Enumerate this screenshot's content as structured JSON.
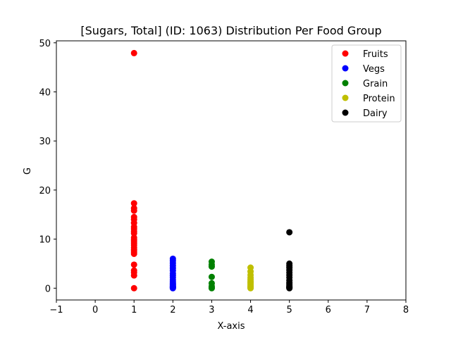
{
  "chart_data": {
    "type": "scatter",
    "title": "[Sugars, Total] (ID: 1063) Distribution Per Food Group",
    "xlabel": "X-axis",
    "ylabel": "G",
    "xlim": [
      -1,
      8
    ],
    "ylim": [
      -2.4,
      50.4
    ],
    "xticks": [
      -1,
      0,
      1,
      2,
      3,
      4,
      5,
      6,
      7,
      8
    ],
    "yticks": [
      0,
      10,
      20,
      30,
      40,
      50
    ],
    "grid": false,
    "legend_position": "top-right",
    "series": [
      {
        "name": "Fruits",
        "color": "#ff0000",
        "x": [
          1,
          1,
          1,
          1,
          1,
          1,
          1,
          1,
          1,
          1,
          1,
          1,
          1,
          1,
          1,
          1,
          1,
          1,
          1,
          1,
          1,
          1,
          1,
          1,
          1,
          1
        ],
        "y": [
          47.9,
          17.3,
          16.3,
          15.8,
          14.5,
          14.0,
          13.3,
          12.5,
          12.1,
          11.6,
          11.2,
          10.3,
          9.9,
          9.6,
          9.2,
          8.8,
          8.3,
          7.9,
          7.6,
          7.3,
          7.0,
          4.8,
          3.6,
          3.2,
          2.6,
          0.0
        ]
      },
      {
        "name": "Vegs",
        "color": "#0000ff",
        "x": [
          2,
          2,
          2,
          2,
          2,
          2,
          2,
          2,
          2,
          2,
          2,
          2,
          2,
          2,
          2,
          2,
          2,
          2,
          2
        ],
        "y": [
          6.0,
          5.6,
          5.1,
          4.6,
          4.1,
          3.6,
          3.0,
          2.6,
          2.2,
          1.7,
          1.3,
          1.0,
          0.8,
          0.6,
          0.4,
          0.3,
          0.2,
          0.1,
          0.0
        ]
      },
      {
        "name": "Grain",
        "color": "#008000",
        "x": [
          3,
          3,
          3,
          3,
          3,
          3,
          3,
          3
        ],
        "y": [
          5.4,
          4.8,
          4.4,
          2.3,
          1.0,
          0.4,
          0.1,
          0.0
        ]
      },
      {
        "name": "Protein",
        "color": "#bfbf00",
        "x": [
          4,
          4,
          4,
          4,
          4,
          4,
          4,
          4,
          4,
          4,
          4,
          4
        ],
        "y": [
          4.2,
          3.4,
          2.7,
          2.2,
          1.8,
          1.4,
          1.1,
          0.8,
          0.5,
          0.3,
          0.1,
          0.0
        ]
      },
      {
        "name": "Dairy",
        "color": "#000000",
        "x": [
          5,
          5,
          5,
          5,
          5,
          5,
          5,
          5,
          5,
          5,
          5,
          5,
          5,
          5,
          5,
          5
        ],
        "y": [
          11.4,
          5.0,
          4.6,
          4.2,
          3.7,
          3.2,
          2.7,
          2.2,
          1.6,
          1.1,
          0.8,
          0.5,
          0.3,
          0.2,
          0.1,
          0.0
        ]
      }
    ]
  }
}
